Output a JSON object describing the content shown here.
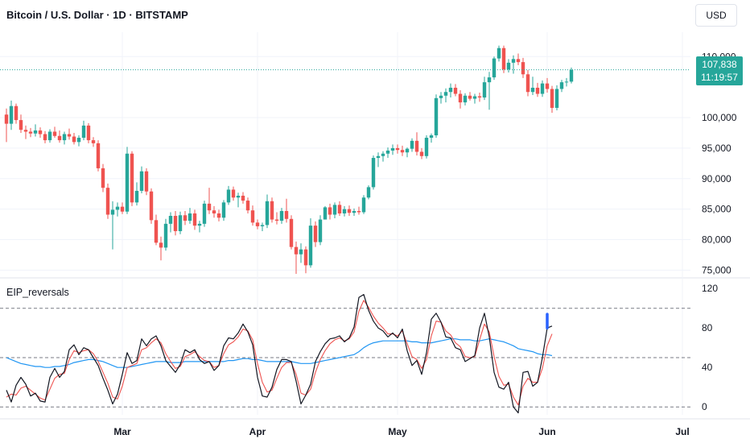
{
  "header": {
    "title": "Bitcoin / U.S. Dollar · 1D · BITSTAMP",
    "currency": "USD"
  },
  "last_price": {
    "value": "107,838",
    "countdown": "11:19:57"
  },
  "indicator": {
    "label": "EIP_reversals"
  },
  "colors": {
    "up": "#26a69a",
    "down": "#ef5350",
    "fast": "#ef5350",
    "slow": "#2196f3",
    "osc": "#131722",
    "signal": "#2962ff"
  },
  "chart_data": [
    {
      "type": "candlestick",
      "title": "Bitcoin / U.S. Dollar · 1D · BITSTAMP",
      "ylim": [
        74000,
        114000
      ],
      "y_ticks": [
        "110,000",
        "100,000",
        "95,000",
        "90,000",
        "85,000",
        "80,000",
        "75,000"
      ],
      "y_tick_values": [
        110000,
        100000,
        95000,
        90000,
        85000,
        80000,
        75000
      ],
      "x_labels": [
        "Mar",
        "Apr",
        "May",
        "Jun",
        "Jul"
      ],
      "last_value": 107838,
      "candles": [
        {
          "o": 100500,
          "h": 101500,
          "l": 96000,
          "c": 99000
        },
        {
          "o": 99000,
          "h": 102800,
          "l": 98000,
          "c": 101900
        },
        {
          "o": 101900,
          "h": 102300,
          "l": 99000,
          "c": 99600
        },
        {
          "o": 99600,
          "h": 100500,
          "l": 97500,
          "c": 98000
        },
        {
          "o": 98000,
          "h": 98700,
          "l": 96500,
          "c": 97700
        },
        {
          "o": 97700,
          "h": 98300,
          "l": 96800,
          "c": 97400
        },
        {
          "o": 97400,
          "h": 98900,
          "l": 96900,
          "c": 97900
        },
        {
          "o": 97900,
          "h": 98400,
          "l": 96700,
          "c": 97300
        },
        {
          "o": 97300,
          "h": 97800,
          "l": 95800,
          "c": 96300
        },
        {
          "o": 96300,
          "h": 98100,
          "l": 95900,
          "c": 97700
        },
        {
          "o": 97700,
          "h": 98500,
          "l": 96700,
          "c": 97000
        },
        {
          "o": 97000,
          "h": 97900,
          "l": 95900,
          "c": 96300
        },
        {
          "o": 96300,
          "h": 97700,
          "l": 95600,
          "c": 97300
        },
        {
          "o": 97300,
          "h": 98200,
          "l": 96400,
          "c": 96900
        },
        {
          "o": 96900,
          "h": 97500,
          "l": 95600,
          "c": 96000
        },
        {
          "o": 96000,
          "h": 97100,
          "l": 95300,
          "c": 96700
        },
        {
          "o": 96700,
          "h": 99500,
          "l": 96300,
          "c": 98700
        },
        {
          "o": 98700,
          "h": 99100,
          "l": 95800,
          "c": 96300
        },
        {
          "o": 96300,
          "h": 96800,
          "l": 95200,
          "c": 95800
        },
        {
          "o": 95800,
          "h": 96300,
          "l": 91200,
          "c": 91700
        },
        {
          "o": 91700,
          "h": 92400,
          "l": 87800,
          "c": 88500
        },
        {
          "o": 88500,
          "h": 89200,
          "l": 83400,
          "c": 84100
        },
        {
          "o": 84100,
          "h": 86300,
          "l": 78400,
          "c": 84900
        },
        {
          "o": 84900,
          "h": 86100,
          "l": 83800,
          "c": 85400
        },
        {
          "o": 85400,
          "h": 86100,
          "l": 84200,
          "c": 84600
        },
        {
          "o": 84600,
          "h": 95200,
          "l": 84200,
          "c": 94100
        },
        {
          "o": 94100,
          "h": 94500,
          "l": 85500,
          "c": 86100
        },
        {
          "o": 86100,
          "h": 89400,
          "l": 85600,
          "c": 88000
        },
        {
          "o": 88000,
          "h": 92000,
          "l": 87600,
          "c": 91200
        },
        {
          "o": 91200,
          "h": 91700,
          "l": 87300,
          "c": 87900
        },
        {
          "o": 87900,
          "h": 88400,
          "l": 82600,
          "c": 83200
        },
        {
          "o": 83200,
          "h": 84100,
          "l": 79100,
          "c": 79500
        },
        {
          "o": 79500,
          "h": 80500,
          "l": 76600,
          "c": 78700
        },
        {
          "o": 78700,
          "h": 83400,
          "l": 78200,
          "c": 82600
        },
        {
          "o": 82600,
          "h": 84500,
          "l": 81200,
          "c": 83900
        },
        {
          "o": 83900,
          "h": 84700,
          "l": 80700,
          "c": 81400
        },
        {
          "o": 81400,
          "h": 84600,
          "l": 80900,
          "c": 84000
        },
        {
          "o": 84000,
          "h": 84700,
          "l": 82400,
          "c": 83100
        },
        {
          "o": 83100,
          "h": 85200,
          "l": 82600,
          "c": 84300
        },
        {
          "o": 84300,
          "h": 84900,
          "l": 81600,
          "c": 82300
        },
        {
          "o": 82300,
          "h": 83100,
          "l": 81200,
          "c": 82600
        },
        {
          "o": 82600,
          "h": 86400,
          "l": 82100,
          "c": 85900
        },
        {
          "o": 85900,
          "h": 88500,
          "l": 84200,
          "c": 84800
        },
        {
          "o": 84800,
          "h": 85500,
          "l": 83600,
          "c": 84300
        },
        {
          "o": 84300,
          "h": 84900,
          "l": 83000,
          "c": 83600
        },
        {
          "o": 83600,
          "h": 86500,
          "l": 83100,
          "c": 86100
        },
        {
          "o": 86100,
          "h": 88800,
          "l": 85700,
          "c": 88200
        },
        {
          "o": 88200,
          "h": 88700,
          "l": 86400,
          "c": 86900
        },
        {
          "o": 86900,
          "h": 87700,
          "l": 85300,
          "c": 87200
        },
        {
          "o": 87200,
          "h": 87800,
          "l": 85900,
          "c": 86400
        },
        {
          "o": 86400,
          "h": 86900,
          "l": 84300,
          "c": 84800
        },
        {
          "o": 84800,
          "h": 85600,
          "l": 82300,
          "c": 82800
        },
        {
          "o": 82800,
          "h": 83300,
          "l": 81700,
          "c": 82200
        },
        {
          "o": 82200,
          "h": 82800,
          "l": 81400,
          "c": 82400
        },
        {
          "o": 82400,
          "h": 87400,
          "l": 81900,
          "c": 86300
        },
        {
          "o": 86300,
          "h": 86900,
          "l": 82800,
          "c": 83300
        },
        {
          "o": 83300,
          "h": 84500,
          "l": 82500,
          "c": 83100
        },
        {
          "o": 83100,
          "h": 85200,
          "l": 82600,
          "c": 84700
        },
        {
          "o": 84700,
          "h": 86700,
          "l": 82800,
          "c": 83400
        },
        {
          "o": 83400,
          "h": 84000,
          "l": 78400,
          "c": 78800
        },
        {
          "o": 78800,
          "h": 79700,
          "l": 74400,
          "c": 77600
        },
        {
          "o": 77600,
          "h": 79400,
          "l": 76200,
          "c": 78400
        },
        {
          "o": 78400,
          "h": 78900,
          "l": 74500,
          "c": 75800
        },
        {
          "o": 75800,
          "h": 83500,
          "l": 75400,
          "c": 82300
        },
        {
          "o": 82300,
          "h": 83000,
          "l": 78800,
          "c": 79600
        },
        {
          "o": 79600,
          "h": 84000,
          "l": 79100,
          "c": 83300
        },
        {
          "o": 83300,
          "h": 85500,
          "l": 83300,
          "c": 85300
        },
        {
          "o": 85300,
          "h": 85900,
          "l": 83300,
          "c": 84100
        },
        {
          "o": 84100,
          "h": 86100,
          "l": 83500,
          "c": 85700
        },
        {
          "o": 85700,
          "h": 86300,
          "l": 83900,
          "c": 84300
        },
        {
          "o": 84300,
          "h": 85500,
          "l": 83800,
          "c": 85000
        },
        {
          "o": 85000,
          "h": 85600,
          "l": 83900,
          "c": 84400
        },
        {
          "o": 84400,
          "h": 85100,
          "l": 83900,
          "c": 84700
        },
        {
          "o": 84700,
          "h": 85400,
          "l": 84100,
          "c": 84500
        },
        {
          "o": 84500,
          "h": 87300,
          "l": 84200,
          "c": 86900
        },
        {
          "o": 86900,
          "h": 88900,
          "l": 86600,
          "c": 88600
        },
        {
          "o": 88600,
          "h": 93800,
          "l": 88200,
          "c": 93400
        },
        {
          "o": 93400,
          "h": 94300,
          "l": 91900,
          "c": 93700
        },
        {
          "o": 93700,
          "h": 94500,
          "l": 92800,
          "c": 94100
        },
        {
          "o": 94100,
          "h": 95100,
          "l": 93400,
          "c": 94600
        },
        {
          "o": 94600,
          "h": 95600,
          "l": 93900,
          "c": 95000
        },
        {
          "o": 95000,
          "h": 95600,
          "l": 94100,
          "c": 94700
        },
        {
          "o": 94700,
          "h": 95400,
          "l": 93700,
          "c": 94300
        },
        {
          "o": 94300,
          "h": 95100,
          "l": 93500,
          "c": 94900
        },
        {
          "o": 94900,
          "h": 96600,
          "l": 94400,
          "c": 96200
        },
        {
          "o": 96200,
          "h": 97600,
          "l": 93800,
          "c": 94400
        },
        {
          "o": 94400,
          "h": 95000,
          "l": 93200,
          "c": 93700
        },
        {
          "o": 93700,
          "h": 97100,
          "l": 93300,
          "c": 96700
        },
        {
          "o": 96700,
          "h": 97400,
          "l": 95900,
          "c": 97100
        },
        {
          "o": 97100,
          "h": 103800,
          "l": 96700,
          "c": 103200
        },
        {
          "o": 103200,
          "h": 104200,
          "l": 102300,
          "c": 103600
        },
        {
          "o": 103600,
          "h": 104800,
          "l": 102500,
          "c": 104200
        },
        {
          "o": 104200,
          "h": 105600,
          "l": 103300,
          "c": 104900
        },
        {
          "o": 104900,
          "h": 105500,
          "l": 103500,
          "c": 103900
        },
        {
          "o": 103900,
          "h": 104500,
          "l": 101500,
          "c": 102500
        },
        {
          "o": 102500,
          "h": 104000,
          "l": 102000,
          "c": 103600
        },
        {
          "o": 103600,
          "h": 104200,
          "l": 102800,
          "c": 103100
        },
        {
          "o": 103100,
          "h": 103900,
          "l": 102300,
          "c": 103500
        },
        {
          "o": 103500,
          "h": 104100,
          "l": 102600,
          "c": 103300
        },
        {
          "o": 103300,
          "h": 106700,
          "l": 102900,
          "c": 105800
        },
        {
          "o": 105800,
          "h": 107500,
          "l": 101300,
          "c": 106600
        },
        {
          "o": 106600,
          "h": 110000,
          "l": 106200,
          "c": 109700
        },
        {
          "o": 109700,
          "h": 111800,
          "l": 109200,
          "c": 111400
        },
        {
          "o": 111400,
          "h": 111800,
          "l": 107300,
          "c": 107900
        },
        {
          "o": 107900,
          "h": 109600,
          "l": 107400,
          "c": 109000
        },
        {
          "o": 109000,
          "h": 110200,
          "l": 107200,
          "c": 109600
        },
        {
          "o": 109600,
          "h": 110500,
          "l": 108600,
          "c": 109100
        },
        {
          "o": 109100,
          "h": 109800,
          "l": 106500,
          "c": 107100
        },
        {
          "o": 107100,
          "h": 107800,
          "l": 103500,
          "c": 104200
        },
        {
          "o": 104200,
          "h": 106700,
          "l": 103700,
          "c": 104900
        },
        {
          "o": 104900,
          "h": 105700,
          "l": 103400,
          "c": 103900
        },
        {
          "o": 103900,
          "h": 106100,
          "l": 103400,
          "c": 105600
        },
        {
          "o": 105600,
          "h": 106500,
          "l": 104100,
          "c": 104700
        },
        {
          "o": 104700,
          "h": 105200,
          "l": 100800,
          "c": 101600
        },
        {
          "o": 101600,
          "h": 105300,
          "l": 101200,
          "c": 104700
        },
        {
          "o": 104700,
          "h": 106200,
          "l": 104200,
          "c": 105800
        },
        {
          "o": 105800,
          "h": 106500,
          "l": 105100,
          "c": 105900
        },
        {
          "o": 105900,
          "h": 108200,
          "l": 105600,
          "c": 107838
        }
      ]
    },
    {
      "type": "line",
      "title": "EIP_reversals",
      "ylim": [
        -8,
        130
      ],
      "y_ticks": [
        "120",
        "80",
        "40",
        "0"
      ],
      "y_tick_values": [
        120,
        80,
        40,
        0
      ],
      "levels": [
        100,
        50,
        0
      ],
      "markers_at_index": [
        112
      ],
      "series": [
        {
          "role": "oscillator",
          "values": [
            17,
            5,
            22,
            30,
            23,
            11,
            14,
            6,
            5,
            30,
            39,
            30,
            36,
            58,
            63,
            53,
            60,
            58,
            50,
            42,
            29,
            17,
            3,
            13,
            33,
            55,
            44,
            47,
            69,
            62,
            69,
            72,
            62,
            47,
            41,
            35,
            43,
            58,
            55,
            58,
            48,
            44,
            46,
            37,
            42,
            62,
            70,
            69,
            75,
            84,
            76,
            63,
            30,
            11,
            10,
            20,
            38,
            48,
            48,
            46,
            26,
            3,
            12,
            23,
            46,
            56,
            64,
            69,
            70,
            72,
            66,
            70,
            81,
            111,
            114,
            98,
            87,
            80,
            77,
            71,
            75,
            70,
            79,
            57,
            42,
            47,
            33,
            55,
            89,
            95,
            86,
            71,
            70,
            60,
            58,
            46,
            49,
            52,
            80,
            95,
            71,
            35,
            20,
            18,
            25,
            0,
            -6,
            35,
            36,
            21,
            25,
            50,
            80,
            82
          ]
        },
        {
          "role": "fast",
          "values": [
            10,
            13,
            12,
            19,
            21,
            17,
            13,
            9,
            7,
            18,
            29,
            33,
            34,
            48,
            57,
            55,
            57,
            58,
            54,
            46,
            35,
            24,
            10,
            8,
            21,
            40,
            42,
            44,
            58,
            60,
            65,
            69,
            65,
            54,
            46,
            39,
            41,
            51,
            53,
            56,
            51,
            47,
            46,
            40,
            42,
            54,
            63,
            66,
            71,
            79,
            77,
            68,
            44,
            25,
            15,
            17,
            29,
            40,
            45,
            45,
            33,
            14,
            12,
            18,
            35,
            48,
            57,
            64,
            68,
            70,
            67,
            69,
            76,
            97,
            108,
            101,
            92,
            85,
            80,
            74,
            74,
            72,
            77,
            64,
            51,
            48,
            39,
            48,
            72,
            87,
            86,
            77,
            73,
            65,
            61,
            51,
            50,
            51,
            68,
            84,
            76,
            51,
            31,
            22,
            23,
            10,
            2,
            21,
            29,
            25,
            25,
            39,
            62,
            74
          ]
        },
        {
          "role": "slow",
          "values": [
            50,
            48,
            46,
            44,
            43,
            42,
            41,
            41,
            40,
            40,
            41,
            41,
            42,
            43,
            45,
            46,
            47,
            48,
            48,
            47,
            46,
            44,
            42,
            40,
            40,
            40,
            41,
            42,
            43,
            44,
            45,
            46,
            46,
            46,
            45,
            45,
            45,
            46,
            46,
            46,
            46,
            46,
            46,
            46,
            46,
            46,
            47,
            47,
            48,
            49,
            49,
            48,
            48,
            47,
            46,
            46,
            46,
            46,
            46,
            46,
            45,
            44,
            44,
            44,
            45,
            46,
            47,
            48,
            49,
            50,
            51,
            52,
            53,
            56,
            60,
            63,
            65,
            66,
            67,
            67,
            67,
            67,
            67,
            67,
            66,
            66,
            65,
            65,
            65,
            66,
            67,
            68,
            69,
            69,
            68,
            68,
            68,
            67,
            67,
            68,
            69,
            68,
            67,
            66,
            64,
            62,
            59,
            58,
            57,
            56,
            54,
            53,
            53,
            52
          ]
        }
      ]
    }
  ]
}
